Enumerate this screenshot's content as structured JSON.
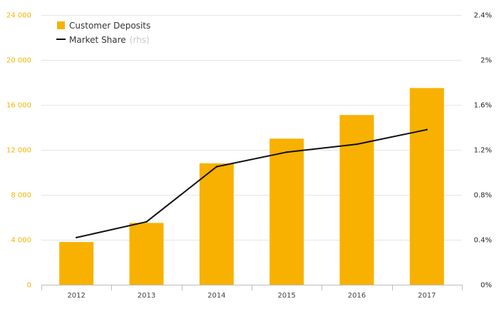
{
  "chart_data": {
    "type": "bar",
    "categories": [
      "2012",
      "2013",
      "2014",
      "2015",
      "2016",
      "2017"
    ],
    "series": [
      {
        "name": "Customer Deposits",
        "type": "bar",
        "axis": "left",
        "values": [
          3800,
          5500,
          10800,
          13000,
          15100,
          17500
        ]
      },
      {
        "name": "Market Share",
        "name_note": "(rhs)",
        "type": "line",
        "axis": "right",
        "values": [
          0.42,
          0.56,
          1.05,
          1.18,
          1.25,
          1.38
        ]
      }
    ],
    "y_left": {
      "lim": [
        0,
        24000
      ],
      "ticks": [
        0,
        4000,
        8000,
        12000,
        16000,
        20000,
        24000
      ],
      "tick_labels": [
        "0",
        "4 000",
        "8 000",
        "12 000",
        "16 000",
        "20 000",
        "24 000"
      ]
    },
    "y_right": {
      "lim": [
        0,
        2.4
      ],
      "ticks": [
        0,
        0.4,
        0.8,
        1.2,
        1.6,
        2.0,
        2.4
      ],
      "tick_labels": [
        "0%",
        "0.4%",
        "0.8%",
        "1.2%",
        "1.6%",
        "2%",
        "2.4%"
      ]
    },
    "grid": true,
    "legend": "top-left",
    "colors": {
      "bar": "#f8b100",
      "line": "#111111",
      "grid": "#e6e6e6",
      "left_ticks": "#f5b400"
    }
  }
}
